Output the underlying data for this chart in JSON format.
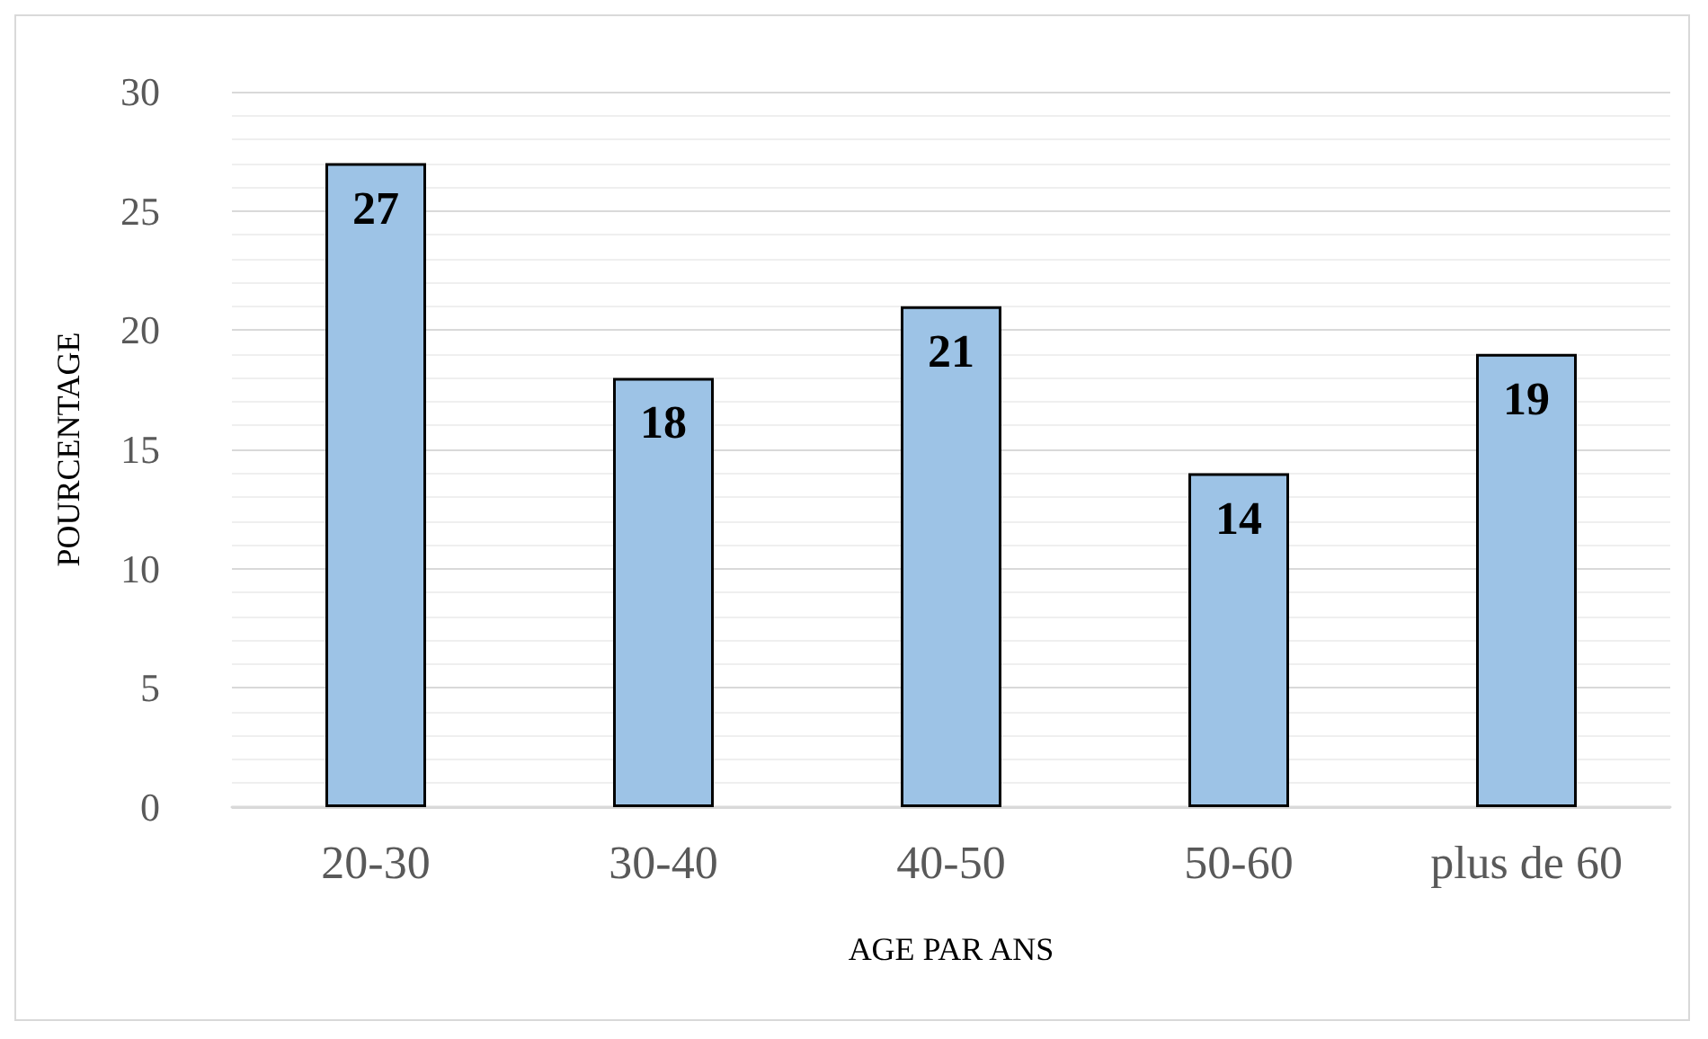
{
  "chart_data": {
    "type": "bar",
    "xlabel": "AGE PAR ANS",
    "ylabel": "POURCENTAGE",
    "categories": [
      "20-30",
      "30-40",
      "40-50",
      "50-60",
      "plus de 60"
    ],
    "values": [
      27,
      18,
      21,
      14,
      19
    ],
    "color": "#9dc3e6",
    "ylim": [
      0,
      30
    ],
    "yticks": [
      0,
      5,
      10,
      15,
      20,
      25,
      30
    ],
    "grid": "y",
    "data_labels": true
  }
}
